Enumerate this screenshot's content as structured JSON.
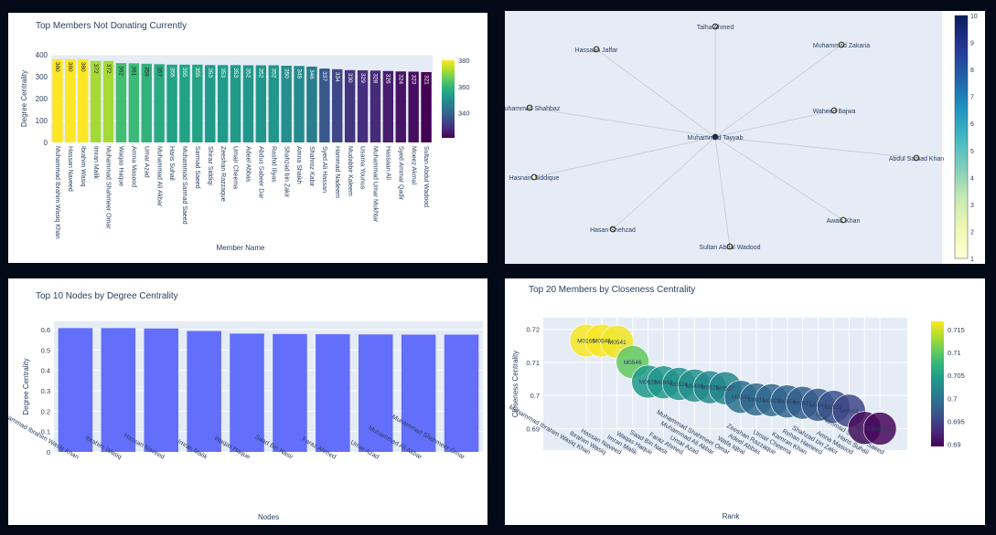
{
  "colors": {
    "page_bg": "#020a18",
    "plot_bg": "#e5ecf6",
    "bar_blue": "#636efa",
    "edge": "#c4c9d2",
    "viridis": [
      "#440154",
      "#482878",
      "#3e4989",
      "#31688e",
      "#26828e",
      "#1f9e89",
      "#35b779",
      "#6ece58",
      "#b5de2b",
      "#fde725"
    ],
    "ylgnbu": [
      "#ffffd9",
      "#edf8b1",
      "#c7e9b4",
      "#7fcdbb",
      "#41b6c4",
      "#1d91c0",
      "#225ea8",
      "#253494",
      "#081d58"
    ]
  },
  "chart_data": [
    {
      "type": "bar",
      "title": "Top Members Not Donating Currently",
      "xlabel": "Member Name",
      "ylabel": "Degree Centrality",
      "ylim": [
        0,
        400
      ],
      "yticks": [
        0,
        100,
        200,
        300,
        400
      ],
      "categories": [
        "Muhammad Ibrahim Wasiq Khan",
        "Hassan Naveed",
        "Ibrahim Wasiq",
        "Imran Malik",
        "Muhammad Shahmeer Omar",
        "Waqas Haque",
        "Amna Masood",
        "Umar Azad",
        "Muhammad Ali Akbar",
        "Haris Suhail",
        "Muhammad Sarmad Saeed",
        "Sarmad Saeed",
        "Shiraz Siddiqi",
        "Zeeshan Razzaque",
        "Umair Cheema",
        "Adeel Abbas",
        "Abdus Sabeer Dar",
        "Rashid Iliyas",
        "Shahzad bin Zakir",
        "Amna Shaikh",
        "Shahroz Kabir",
        "Syed Ali Hassan",
        "Hammad Nadeem",
        "Mudabbir Kaleem",
        "Usama Younus",
        "Muhammad Umar Mukhtar",
        "Hassaan Ali",
        "Syed Ammar Qadir",
        "Moeez Akmal",
        "Sultan Abdul Wadood"
      ],
      "values": [
        380,
        380,
        380,
        372,
        372,
        362,
        361,
        359,
        357,
        355,
        355,
        355,
        353,
        353,
        353,
        352,
        352,
        352,
        350,
        349,
        346,
        337,
        334,
        330,
        329,
        328,
        326,
        324,
        323,
        321
      ],
      "value_labels": [
        "380",
        "380",
        "380",
        "372",
        "372",
        "362",
        "361",
        "359",
        "357",
        "355",
        "355",
        "355",
        "353",
        "353",
        "353",
        "352",
        "352",
        "352",
        "350",
        "349",
        "346",
        "337",
        "334",
        "330",
        "329",
        "328",
        "326",
        "324",
        "323",
        "321"
      ],
      "colorbar": {
        "min": 321,
        "max": 380,
        "ticks": [
          340,
          360,
          380
        ]
      }
    },
    {
      "type": "network",
      "center": "Muhammad Tayyab",
      "nodes": [
        {
          "label": "Talha Ahmed",
          "value": 1
        },
        {
          "label": "Muhammad Zakaria",
          "value": 1
        },
        {
          "label": "Hassaan Jaffar",
          "value": 1
        },
        {
          "label": "Muhammad Shahbaz",
          "value": 1
        },
        {
          "label": "Waheed Bajwa",
          "value": 1
        },
        {
          "label": "Muhammad Tayyab",
          "value": 10
        },
        {
          "label": "Abdul Samad Khan",
          "value": 1
        },
        {
          "label": "Hasnain Siddique",
          "value": 1
        },
        {
          "label": "Awais Khan",
          "value": 1
        },
        {
          "label": "Hasan Shehzad",
          "value": 1
        },
        {
          "label": "Sultan Abdul Wadood",
          "value": 1
        }
      ],
      "colorbar": {
        "min": 1,
        "max": 10,
        "ticks": [
          1,
          2,
          3,
          4,
          5,
          6,
          7,
          8,
          9,
          10
        ]
      }
    },
    {
      "type": "bar",
      "title": "Top 10 Nodes by Degree Centrality",
      "xlabel": "Nodes",
      "ylabel": "Degree Centrality",
      "ylim": [
        0,
        0.64
      ],
      "yticks": [
        0,
        0.1,
        0.2,
        0.3,
        0.4,
        0.5,
        0.6
      ],
      "ytick_labels": [
        "0",
        "0.1",
        "0.2",
        "0.3",
        "0.4",
        "0.5",
        "0.6"
      ],
      "categories": [
        "Muhammad Ibrahim Wasiq Khan",
        "Ibrahim Wasiq",
        "Hassan Naveed",
        "Imran Malik",
        "Waqas Haque",
        "Saad Bin Nasir",
        "Faraz Ahmed",
        "Umar Azad",
        "Muhammad Ali Akbar",
        "Muhammad Shahmeer Omar"
      ],
      "values": [
        0.607,
        0.607,
        0.605,
        0.593,
        0.58,
        0.578,
        0.577,
        0.576,
        0.575,
        0.575
      ]
    },
    {
      "type": "scatter",
      "title": "Top 20 Members by Closeness Centrality",
      "xlabel": "Rank",
      "ylabel": "Closeness Centrality",
      "ylim": [
        0.6835,
        0.7235
      ],
      "yticks": [
        0.69,
        0.7,
        0.71,
        0.72
      ],
      "ytick_labels": [
        "0.69",
        "0.7",
        "0.71",
        "0.72"
      ],
      "categories": [
        "Muhammad Ibrahim Wasiq Khan",
        "Ibrahim Wasiq",
        "Hassan Naveed",
        "Imran Malik",
        "Waqas Haque",
        "Saad Bin Nasir",
        "Faraz Ahmed",
        "Umar Azad",
        "Muhammad Ali Akbar",
        "Muhammad Shahmeer Omar",
        "Wafa Iqbal",
        "Adeel Abbas",
        "Zeeshan Razzaque",
        "Umair Cheema",
        "Kamran Khan",
        "Rehan Hameed",
        "Shahzad bin Zakir",
        "Amna Masood",
        "Haris Suhail",
        "Muhammad Sarmad Saeed"
      ],
      "values": [
        0.7166,
        0.7166,
        0.7162,
        0.7101,
        0.7042,
        0.704,
        0.7035,
        0.703,
        0.7025,
        0.7022,
        0.6996,
        0.6988,
        0.6986,
        0.6982,
        0.6978,
        0.6972,
        0.6966,
        0.6954,
        0.6902,
        0.69
      ],
      "point_labels": [
        "M0165",
        "M0546",
        "M0541",
        "M0546",
        "M0626",
        "M0549",
        "M0526",
        "M0499",
        "M0526",
        "M0527",
        "M0543",
        "M0111",
        "M0820",
        "M0556",
        "M0537",
        "M0542",
        "M0519",
        "M0544",
        "M0537",
        "M0534"
      ],
      "colorbar": {
        "min": 0.6895,
        "max": 0.7168,
        "ticks": [
          0.69,
          0.695,
          0.7,
          0.705,
          0.71,
          0.715
        ],
        "tick_labels": [
          "0.69",
          "0.695",
          "0.7",
          "0.705",
          "0.71",
          "0.715"
        ]
      }
    }
  ]
}
